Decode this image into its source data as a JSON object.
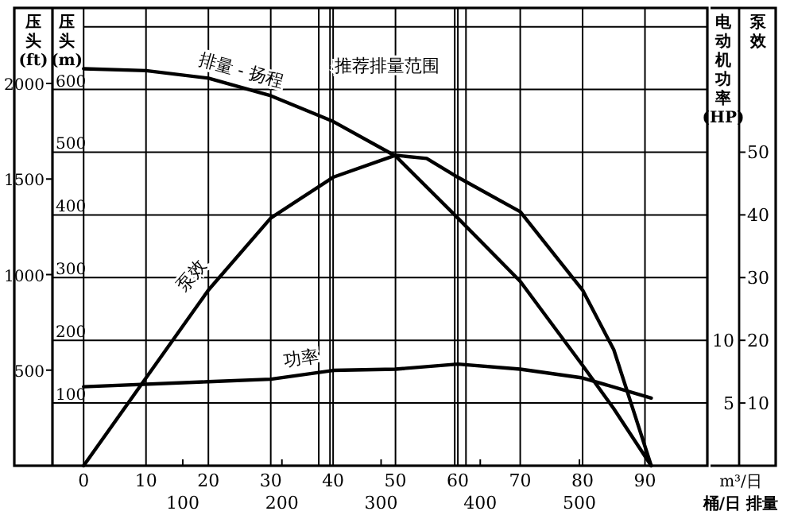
{
  "chart_data": {
    "type": "line",
    "xlabel": "m³/日",
    "x2label": "桶/日 排量",
    "ylabel": "压头 (m)",
    "y2label": "电动机功率 (HP)",
    "y3label": "泵效",
    "annotations": [
      "压头 (ft)",
      "500",
      "1000",
      "1500",
      "2000"
    ],
    "xlim": [
      -5,
      100
    ],
    "xticks": [
      0,
      10,
      20,
      30,
      40,
      50,
      60,
      70,
      80,
      90
    ],
    "x2lim": [
      -31.4,
      629
    ],
    "x2ticks": [
      100,
      200,
      300,
      400,
      500
    ],
    "ylim": [
      0,
      730
    ],
    "yticks": [
      100,
      200,
      300,
      400,
      500,
      600,
      {
        "value": 700,
        "label": null
      }
    ],
    "y2lim": [
      0,
      36.5
    ],
    "y2ticks": [
      5,
      10
    ],
    "y3lim": [
      0,
      73
    ],
    "y3ticks": [
      10,
      20,
      30,
      40,
      50
    ],
    "grid": true,
    "ref_lines": [
      {
        "axis": "x",
        "value": 37.7
      },
      {
        "axis": "x",
        "value": 39.5,
        "label": "推荐排量范围"
      },
      {
        "axis": "x",
        "value": 59.5
      },
      {
        "axis": "x",
        "value": 61.3
      }
    ],
    "series": [
      {
        "name": "排量 - 扬程",
        "color": "#000000",
        "x": [
          0,
          10,
          20,
          30,
          40,
          50,
          60,
          70,
          80,
          85,
          91
        ],
        "values": [
          633,
          630,
          618,
          590,
          549,
          494,
          395,
          294,
          160,
          91,
          0
        ]
      },
      {
        "name": "泵效",
        "color": "#000000",
        "axis": "y3",
        "x": [
          0,
          10,
          20,
          30,
          40,
          50,
          55,
          60,
          70,
          80,
          85,
          91
        ],
        "values": [
          0,
          14,
          28,
          39.5,
          46,
          49.5,
          49,
          46,
          40.5,
          28,
          18.5,
          0
        ]
      },
      {
        "name": "功率",
        "color": "#000000",
        "axis": "y2",
        "x": [
          0,
          20,
          30,
          40,
          50,
          60,
          70,
          80,
          91
        ],
        "values": [
          6.3,
          6.7,
          6.9,
          7.6,
          7.7,
          8.1,
          7.7,
          7.0,
          5.4
        ]
      }
    ]
  }
}
